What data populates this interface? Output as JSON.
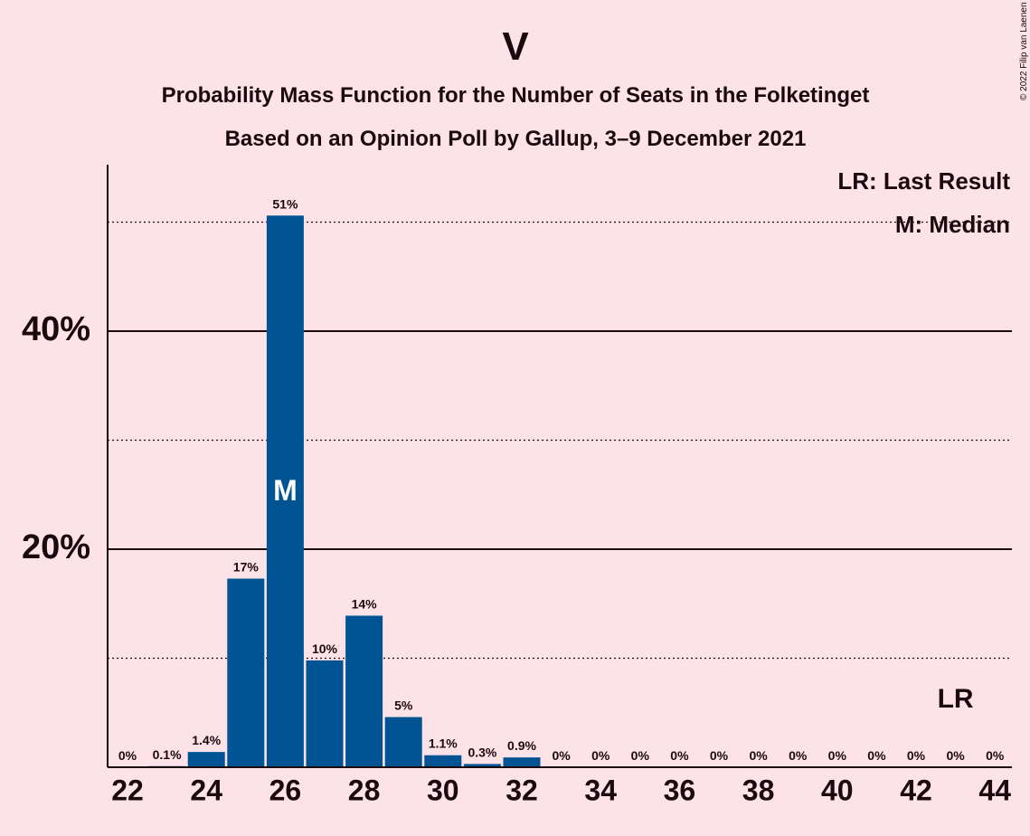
{
  "copyright": "© 2022 Filip van Laenen",
  "chart_data": {
    "type": "bar",
    "title": "V",
    "subtitle": "Probability Mass Function for the Number of Seats in the Folketinget",
    "subtitle2": "Based on an Opinion Poll by Gallup, 3–9 December 2021",
    "x": [
      22,
      23,
      24,
      25,
      26,
      27,
      28,
      29,
      30,
      31,
      32,
      33,
      34,
      35,
      36,
      37,
      38,
      39,
      40,
      41,
      42,
      43,
      44
    ],
    "values": [
      0,
      0.1,
      1.4,
      17.3,
      50.6,
      9.8,
      13.9,
      4.6,
      1.1,
      0.3,
      0.9,
      0,
      0,
      0,
      0,
      0,
      0,
      0,
      0,
      0,
      0,
      0,
      0
    ],
    "data_labels": [
      "0%",
      "0.1%",
      "1.4%",
      "17%",
      "51%",
      "10%",
      "14%",
      "5%",
      "1.1%",
      "0.3%",
      "0.9%",
      "0%",
      "0%",
      "0%",
      "0%",
      "0%",
      "0%",
      "0%",
      "0%",
      "0%",
      "0%",
      "0%",
      "0%"
    ],
    "x_tick_labels": [
      "22",
      "24",
      "26",
      "28",
      "30",
      "32",
      "34",
      "36",
      "38",
      "40",
      "42",
      "44"
    ],
    "y_tick_labels": [
      "20%",
      "40%"
    ],
    "ylim": [
      0,
      55
    ],
    "grid": {
      "solid": [
        20,
        40
      ],
      "dotted": [
        10,
        30,
        50
      ]
    },
    "median_seat": 26,
    "median_marker": "M",
    "last_result_seat": 43,
    "last_result_marker": "LR",
    "legend": [
      "LR: Last Result",
      "M: Median"
    ],
    "legend_position": "top-right",
    "bar_color": "#005494",
    "background_color": "#FDE2E7"
  }
}
